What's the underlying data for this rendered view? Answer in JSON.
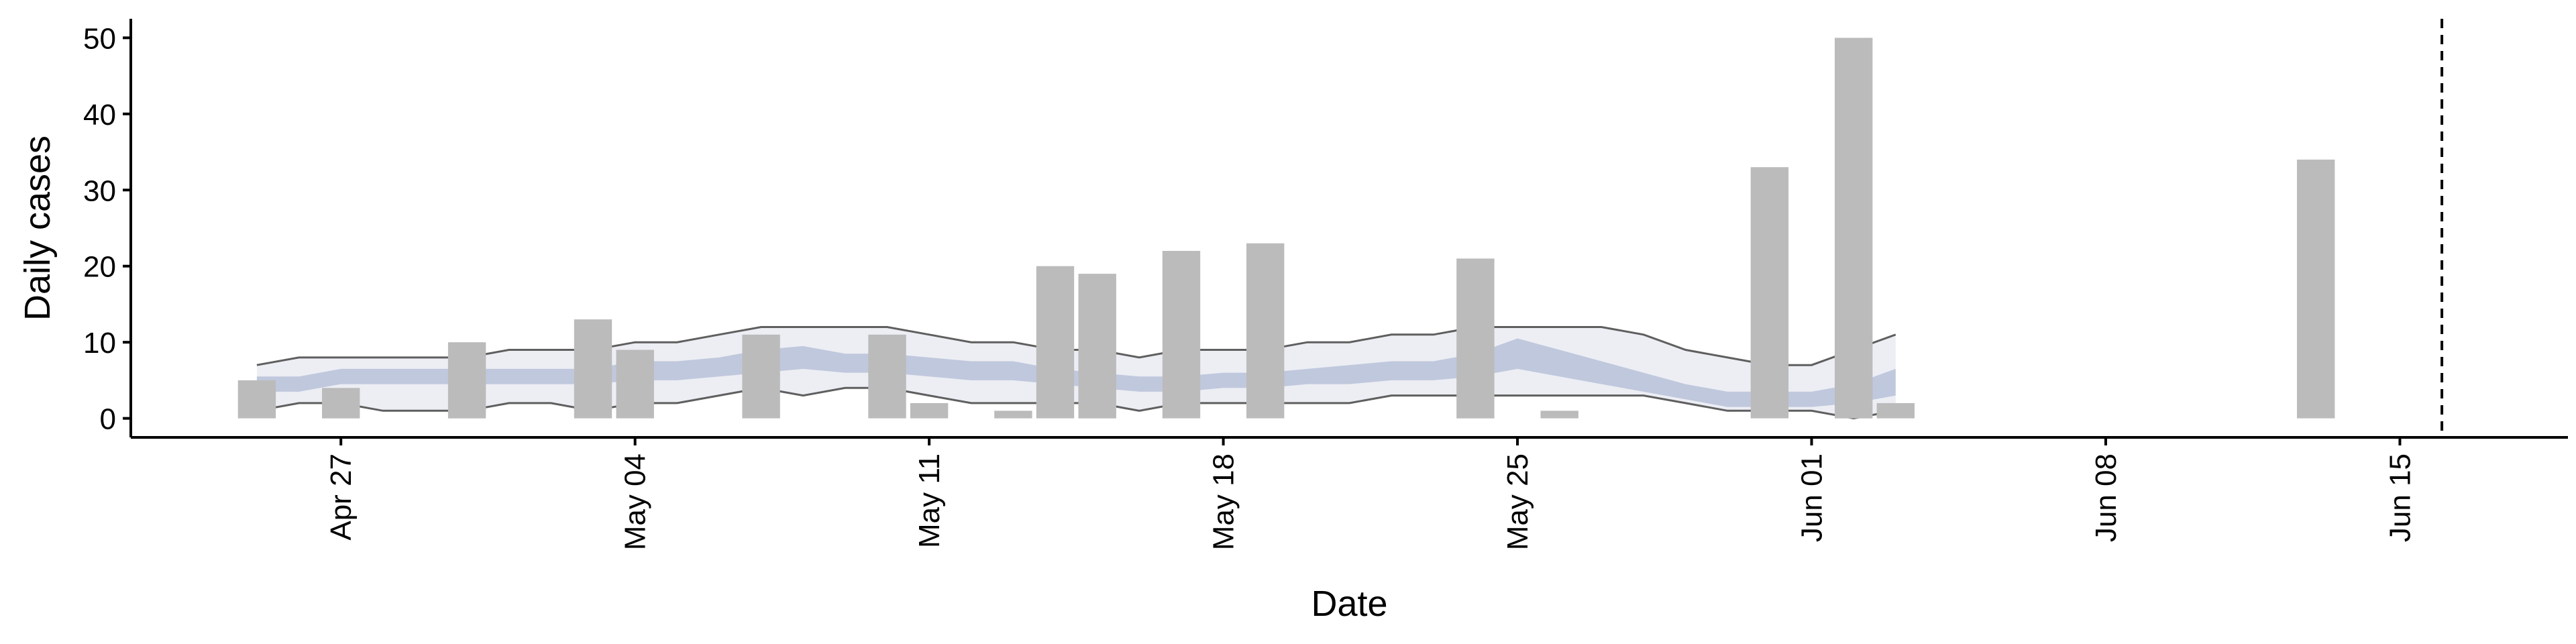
{
  "chart_data": {
    "type": "bar",
    "xlabel": "Date",
    "ylabel": "Daily cases",
    "ylim": [
      -2.5,
      52.5
    ],
    "xlim": [
      "2020-04-22",
      "2020-06-19"
    ],
    "grid": false,
    "legend": "none",
    "y_ticks": [
      0,
      10,
      20,
      30,
      40,
      50
    ],
    "x_ticks": [
      {
        "date": "2020-04-27",
        "label": "Apr 27"
      },
      {
        "date": "2020-05-04",
        "label": "May 04"
      },
      {
        "date": "2020-05-11",
        "label": "May 11"
      },
      {
        "date": "2020-05-18",
        "label": "May 18"
      },
      {
        "date": "2020-05-25",
        "label": "May 25"
      },
      {
        "date": "2020-06-01",
        "label": "Jun 01"
      },
      {
        "date": "2020-06-08",
        "label": "Jun 08"
      },
      {
        "date": "2020-06-15",
        "label": "Jun 15"
      }
    ],
    "bars": {
      "dates": [
        "2020-04-25",
        "2020-04-27",
        "2020-04-30",
        "2020-05-03",
        "2020-05-04",
        "2020-05-07",
        "2020-05-10",
        "2020-05-11",
        "2020-05-13",
        "2020-05-14",
        "2020-05-15",
        "2020-05-17",
        "2020-05-19",
        "2020-05-24",
        "2020-05-26",
        "2020-05-31",
        "2020-06-02",
        "2020-06-03",
        "2020-06-13"
      ],
      "values": [
        5,
        4,
        10,
        13,
        9,
        11,
        11,
        2,
        1,
        20,
        19,
        22,
        23,
        21,
        1,
        33,
        50,
        2,
        34
      ]
    },
    "bands": {
      "dates": [
        "2020-04-25",
        "2020-04-26",
        "2020-04-27",
        "2020-04-28",
        "2020-04-29",
        "2020-04-30",
        "2020-05-01",
        "2020-05-02",
        "2020-05-03",
        "2020-05-04",
        "2020-05-05",
        "2020-05-06",
        "2020-05-07",
        "2020-05-08",
        "2020-05-09",
        "2020-05-10",
        "2020-05-11",
        "2020-05-12",
        "2020-05-13",
        "2020-05-14",
        "2020-05-15",
        "2020-05-16",
        "2020-05-17",
        "2020-05-18",
        "2020-05-19",
        "2020-05-20",
        "2020-05-21",
        "2020-05-22",
        "2020-05-23",
        "2020-05-24",
        "2020-05-25",
        "2020-05-26",
        "2020-05-27",
        "2020-05-28",
        "2020-05-29",
        "2020-05-30",
        "2020-05-31",
        "2020-06-01",
        "2020-06-02",
        "2020-06-03"
      ],
      "outer_lower": [
        1,
        2,
        2,
        1,
        1,
        1,
        2,
        2,
        1,
        2,
        2,
        3,
        4,
        3,
        4,
        4,
        3,
        2,
        2,
        2,
        2,
        1,
        2,
        2,
        2,
        2,
        2,
        3,
        3,
        3,
        3,
        3,
        3,
        3,
        2,
        1,
        1,
        1,
        0,
        1
      ],
      "outer_upper": [
        7,
        8,
        8,
        8,
        8,
        8,
        9,
        9,
        9,
        10,
        10,
        11,
        12,
        12,
        12,
        12,
        11,
        10,
        10,
        9,
        9,
        8,
        9,
        9,
        9,
        10,
        10,
        11,
        11,
        12,
        12,
        12,
        12,
        11,
        9,
        8,
        7,
        7,
        9,
        11
      ],
      "inner_lower": [
        3.5,
        3.5,
        4.5,
        4.5,
        4.5,
        4.5,
        4.5,
        4.5,
        4.5,
        5,
        5,
        5.5,
        6,
        6.5,
        6,
        6,
        5.5,
        5,
        5,
        4.5,
        4,
        3.5,
        3.5,
        4,
        4,
        4.5,
        4.5,
        5,
        5,
        5.5,
        6.5,
        5.5,
        4.5,
        3.5,
        2.5,
        1.5,
        1.5,
        1.5,
        2,
        3
      ],
      "inner_upper": [
        5.5,
        5.5,
        6.5,
        6.5,
        6.5,
        6.5,
        6.5,
        6.5,
        6.5,
        7.5,
        7.5,
        8,
        9,
        9.5,
        8.5,
        8.5,
        8,
        7.5,
        7.5,
        6.5,
        6,
        5.5,
        5.5,
        6,
        6,
        6.5,
        7,
        7.5,
        7.5,
        8.5,
        10.5,
        9,
        7.5,
        6,
        4.5,
        3.5,
        3.5,
        3.5,
        4.5,
        6.5
      ]
    },
    "vline_date": "2020-06-16",
    "colors": {
      "bar": "#bbbbbb",
      "outer_band": "#eceef4",
      "inner_band": "#b8c1d8",
      "band_edge": "#5f5f5f",
      "vline": "#000000"
    }
  }
}
